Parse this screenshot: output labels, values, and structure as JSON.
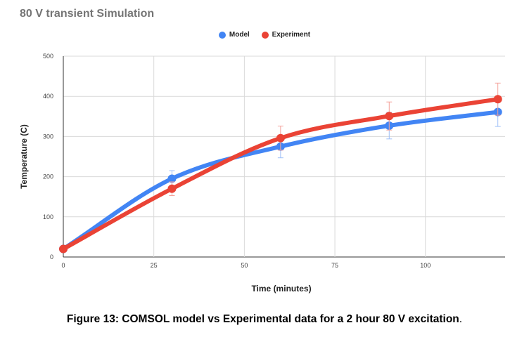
{
  "chart_data": {
    "type": "line",
    "title": "80 V transient Simulation",
    "xlabel": "Time (minutes)",
    "ylabel": "Temperature (C)",
    "xlim": [
      0,
      122
    ],
    "ylim": [
      0,
      500
    ],
    "x_ticks": [
      "0",
      "25",
      "50",
      "75",
      "100"
    ],
    "y_ticks": [
      "0",
      "100",
      "200",
      "300",
      "400",
      "500"
    ],
    "grid": true,
    "legend_position": "top",
    "x": [
      0,
      30,
      60,
      90,
      120
    ],
    "series": [
      {
        "name": "Model",
        "color": "#4285f4",
        "values": [
          20,
          195,
          275,
          327,
          361
        ],
        "error": [
          null,
          20,
          28,
          33,
          36
        ]
      },
      {
        "name": "Experiment",
        "color": "#ea4335",
        "values": [
          20,
          170,
          296,
          351,
          393
        ],
        "error": [
          null,
          17,
          30,
          35,
          40
        ]
      }
    ]
  },
  "caption": {
    "text": "Figure 13: COMSOL model vs Experimental data for a 2 hour 80 V excitation",
    "trailing": "."
  }
}
